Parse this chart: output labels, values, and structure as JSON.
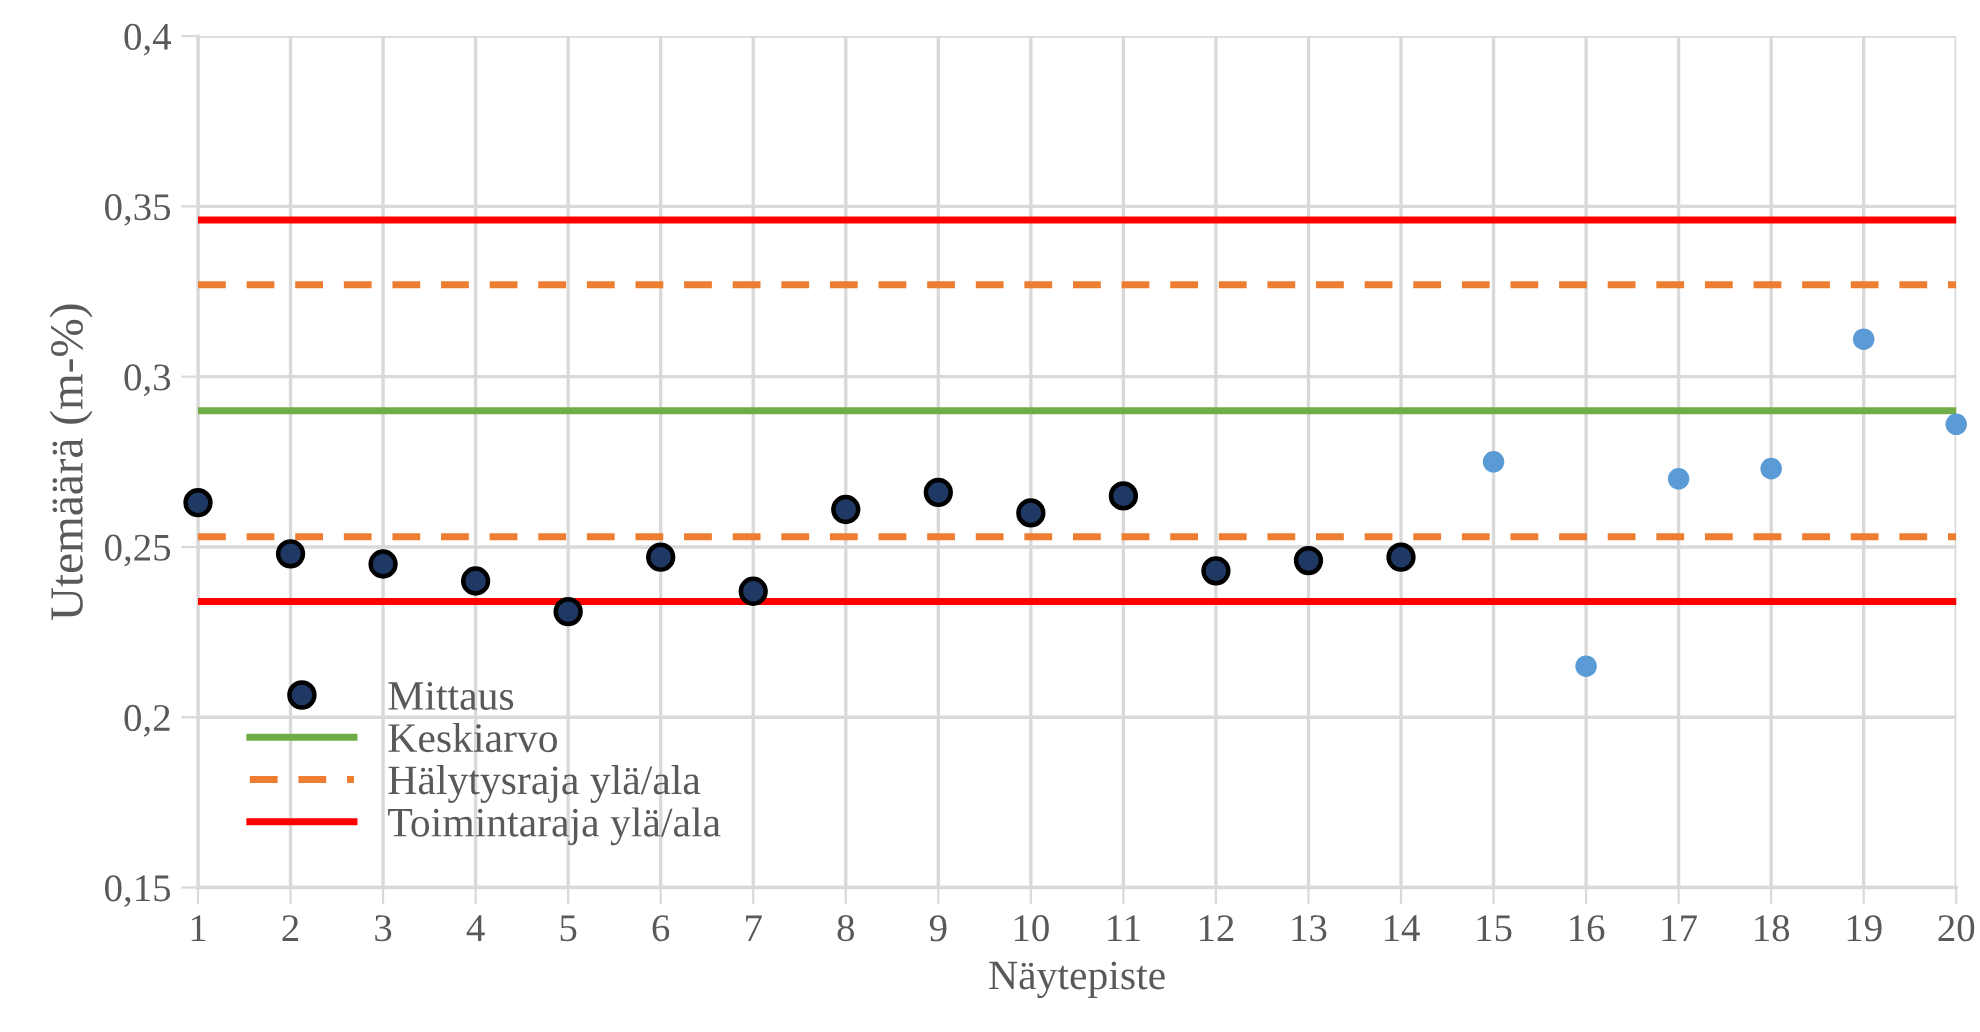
{
  "chart_data": {
    "type": "scatter",
    "xlabel": "Näytepiste",
    "ylabel": "Utemäärä (m-%)",
    "xlim": [
      1,
      20
    ],
    "xticks": [
      1,
      2,
      3,
      4,
      5,
      6,
      7,
      8,
      9,
      10,
      11,
      12,
      13,
      14,
      15,
      16,
      17,
      18,
      19,
      20
    ],
    "ylim": [
      0.15,
      0.4
    ],
    "yticks": [
      {
        "value": 0.15,
        "label": "0,15"
      },
      {
        "value": 0.2,
        "label": "0,2"
      },
      {
        "value": 0.25,
        "label": "0,25"
      },
      {
        "value": 0.3,
        "label": "0,3"
      },
      {
        "value": 0.35,
        "label": "0,35"
      },
      {
        "value": 0.4,
        "label": "0,4"
      }
    ],
    "grid": true,
    "legend": "bottom left",
    "marker": "circle",
    "series": [
      {
        "name": "Mittaus",
        "color": "#1f3864",
        "x": [
          1,
          2,
          3,
          4,
          5,
          6,
          7,
          8,
          9,
          10,
          11,
          12,
          13,
          14
        ],
        "values": [
          0.263,
          0.248,
          0.245,
          0.24,
          0.231,
          0.247,
          0.237,
          0.261,
          0.266,
          0.26,
          0.265,
          0.243,
          0.246,
          0.247
        ]
      },
      {
        "color": "#5b9bd5",
        "x": [
          15,
          16,
          17,
          18,
          19,
          20
        ],
        "values": [
          0.275,
          0.215,
          0.27,
          0.273,
          0.311,
          0.286
        ]
      }
    ],
    "ref_lines": [
      {
        "axis": "y",
        "value": 0.29,
        "label": "Keskiarvo",
        "color": "#70ad47",
        "line_style": "solid"
      },
      {
        "axis": "y",
        "value": 0.327,
        "label": "Hälytysraja ylä/ala",
        "color": "#ed7d31",
        "line_style": "dashed"
      },
      {
        "axis": "y",
        "value": 0.253,
        "label": null,
        "color": "#ed7d31",
        "line_style": "dashed"
      },
      {
        "axis": "y",
        "value": 0.346,
        "label": "Toimintaraja ylä/ala",
        "color": "#ff0000",
        "line_style": "solid"
      },
      {
        "axis": "y",
        "value": 0.234,
        "label": null,
        "color": "#ff0000",
        "line_style": "solid"
      }
    ]
  }
}
